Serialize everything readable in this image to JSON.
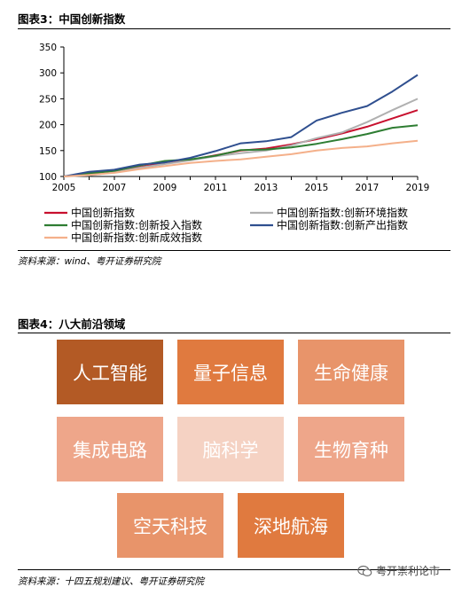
{
  "figure3": {
    "title": "图表3：中国创新指数",
    "source": "资料来源：wind、粤开证券研究院"
  },
  "chart_data": {
    "type": "line",
    "x": [
      2005,
      2006,
      2007,
      2008,
      2009,
      2010,
      2011,
      2012,
      2013,
      2014,
      2015,
      2016,
      2017,
      2018,
      2019
    ],
    "ylim": [
      100,
      350
    ],
    "yticks": [
      100,
      150,
      200,
      250,
      300,
      350
    ],
    "xticks": [
      2005,
      2007,
      2009,
      2011,
      2013,
      2015,
      2017,
      2019
    ],
    "grid": false,
    "legend_position": "bottom",
    "series": [
      {
        "name": "中国创新指数",
        "color": "#c8102e",
        "values": [
          100,
          104,
          110,
          118,
          126,
          132,
          141,
          150,
          154,
          162,
          172,
          183,
          196,
          212,
          228
        ]
      },
      {
        "name": "中国创新指数:创新环境指数",
        "color": "#b0b0b0",
        "values": [
          100,
          102,
          108,
          117,
          124,
          131,
          139,
          145,
          150,
          160,
          174,
          185,
          205,
          228,
          250
        ]
      },
      {
        "name": "中国创新指数:创新投入指数",
        "color": "#2e7d32",
        "values": [
          100,
          106,
          111,
          121,
          130,
          133,
          140,
          151,
          152,
          156,
          163,
          172,
          182,
          194,
          199
        ]
      },
      {
        "name": "中国创新指数:创新产出指数",
        "color": "#2f4f8f",
        "values": [
          100,
          109,
          113,
          123,
          127,
          136,
          149,
          164,
          168,
          176,
          208,
          223,
          236,
          264,
          296
        ]
      },
      {
        "name": "中国创新指数:创新成效指数",
        "color": "#f4b08a",
        "values": [
          100,
          103,
          107,
          114,
          120,
          126,
          130,
          133,
          138,
          143,
          150,
          155,
          158,
          164,
          169
        ]
      }
    ]
  },
  "figure4": {
    "title": "图表4：八大前沿领域",
    "source": "资料来源：十四五规划建议、粤开证券研究院",
    "tiles": [
      {
        "label": "人工智能",
        "color": "#b35a25"
      },
      {
        "label": "量子信息",
        "color": "#e07a3f"
      },
      {
        "label": "生命健康",
        "color": "#e8946a"
      },
      {
        "label": "集成电路",
        "color": "#eea68a"
      },
      {
        "label": "脑科学",
        "color": "#f5d2c3"
      },
      {
        "label": "生物育种",
        "color": "#eea68a"
      },
      {
        "label": "空天科技",
        "color": "#e8946a"
      },
      {
        "label": "深地航海",
        "color": "#e07a3f"
      }
    ]
  },
  "watermark": {
    "text": "粤开崇利论市",
    "icon": "wechat-icon"
  }
}
